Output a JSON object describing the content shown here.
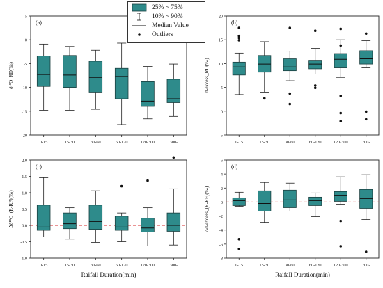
{
  "legend": {
    "box_label": "25% ~ 75%",
    "whisker_label": "10% ~ 90%",
    "median_label": "Median Value",
    "outlier_label": "Outliers"
  },
  "colors": {
    "box_fill": "#2e8b8b",
    "box_edge": "#1a3f3f",
    "zero_line": "#d62728"
  },
  "chart_data": [
    {
      "type": "box",
      "panel_label": "(a)",
      "ylabel": "δ¹⁸O_RD(‰)",
      "xlabel": "",
      "ylim": [
        -20,
        5
      ],
      "yticks": [
        5,
        0,
        -5,
        -10,
        -15,
        -20
      ],
      "zero_line": false,
      "categories": [
        "0-15",
        "15-30",
        "30-60",
        "60-120",
        "120-300",
        "300-"
      ],
      "boxes": [
        {
          "whisker_low": -14.8,
          "q1": -9.8,
          "median": -7.3,
          "q3": -3.4,
          "whisker_high": -0.9,
          "outliers": []
        },
        {
          "whisker_low": -14.8,
          "q1": -10.0,
          "median": -7.4,
          "q3": -3.3,
          "whisker_high": -1.4,
          "outliers": []
        },
        {
          "whisker_low": -14.6,
          "q1": -11.0,
          "median": -7.9,
          "q3": -4.5,
          "whisker_high": -2.2,
          "outliers": []
        },
        {
          "whisker_low": -17.8,
          "q1": -12.4,
          "median": -7.7,
          "q3": -6.0,
          "whisker_high": -0.7,
          "outliers": []
        },
        {
          "whisker_low": -16.6,
          "q1": -14.0,
          "median": -12.9,
          "q3": -8.8,
          "whisker_high": -5.6,
          "outliers": []
        },
        {
          "whisker_low": -16.1,
          "q1": -13.2,
          "median": -12.4,
          "q3": -8.3,
          "whisker_high": -5.1,
          "outliers": []
        }
      ]
    },
    {
      "type": "box",
      "panel_label": "(b)",
      "ylabel": "d-excess_RD(‰)",
      "xlabel": "",
      "ylim": [
        -5,
        20
      ],
      "yticks": [
        20,
        15,
        10,
        5,
        0,
        -5
      ],
      "zero_line": false,
      "categories": [
        "0-15",
        "15-30",
        "30-60",
        "60-120",
        "120-300",
        "300-"
      ],
      "boxes": [
        {
          "whisker_low": 3.5,
          "q1": 7.6,
          "median": 9.3,
          "q3": 10.3,
          "whisker_high": 12.2,
          "outliers": [
            17.5,
            15.8,
            15.4,
            14.9
          ]
        },
        {
          "whisker_low": 4.0,
          "q1": 8.2,
          "median": 9.9,
          "q3": 11.7,
          "whisker_high": 14.6,
          "outliers": [
            2.7
          ]
        },
        {
          "whisker_low": 6.4,
          "q1": 8.5,
          "median": 9.3,
          "q3": 11.0,
          "whisker_high": 12.6,
          "outliers": [
            17.5,
            3.7,
            1.5
          ]
        },
        {
          "whisker_low": 7.8,
          "q1": 8.9,
          "median": 9.9,
          "q3": 10.7,
          "whisker_high": 13.2,
          "outliers": [
            16.9,
            5.4,
            4.9
          ]
        },
        {
          "whisker_low": 7.1,
          "q1": 9.1,
          "median": 10.9,
          "q3": 12.1,
          "whisker_high": 15.0,
          "outliers": [
            17.3,
            13.8,
            3.2,
            -0.4,
            -2.1
          ]
        },
        {
          "whisker_low": 9.1,
          "q1": 9.9,
          "median": 11.0,
          "q3": 12.7,
          "whisker_high": 14.8,
          "outliers": [
            16.3,
            -0.1,
            -1.7
          ]
        }
      ]
    },
    {
      "type": "box",
      "panel_label": "(c)",
      "ylabel": "Δδ¹⁸O_(R-RF)(‰)",
      "xlabel": "Raifall Duration(min)",
      "ylim": [
        -1.0,
        2.0
      ],
      "yticks": [
        2.0,
        1.5,
        1.0,
        0.5,
        0.0,
        -0.5,
        -1.0
      ],
      "zero_line": true,
      "categories": [
        "0-15",
        "15-30",
        "30-60",
        "60-120",
        "120-300",
        "300-"
      ],
      "boxes": [
        {
          "whisker_low": -0.35,
          "q1": -0.15,
          "median": -0.05,
          "q3": 0.62,
          "whisker_high": 1.46,
          "outliers": []
        },
        {
          "whisker_low": -0.42,
          "q1": -0.1,
          "median": 0.05,
          "q3": 0.38,
          "whisker_high": 0.54,
          "outliers": []
        },
        {
          "whisker_low": -0.52,
          "q1": -0.12,
          "median": 0.12,
          "q3": 0.62,
          "whisker_high": 1.06,
          "outliers": []
        },
        {
          "whisker_low": -0.5,
          "q1": -0.15,
          "median": -0.05,
          "q3": 0.28,
          "whisker_high": 0.38,
          "outliers": [
            1.2
          ]
        },
        {
          "whisker_low": -0.63,
          "q1": -0.2,
          "median": -0.08,
          "q3": 0.22,
          "whisker_high": 0.54,
          "outliers": [
            1.37
          ]
        },
        {
          "whisker_low": -0.6,
          "q1": -0.18,
          "median": 0.0,
          "q3": 0.38,
          "whisker_high": 1.12,
          "outliers": [
            2.08
          ]
        }
      ]
    },
    {
      "type": "box",
      "panel_label": "(d)",
      "ylabel": "Δd-excess_(R-RF)(‰)",
      "xlabel": "Raifall Duration(min)",
      "ylim": [
        -8,
        6
      ],
      "yticks": [
        6,
        4,
        2,
        0,
        -2,
        -4,
        -6,
        -8
      ],
      "zero_line": true,
      "categories": [
        "0-15",
        "15-30",
        "30-60",
        "60-120",
        "120-300",
        "300-"
      ],
      "boxes": [
        {
          "whisker_low": -0.6,
          "q1": -0.5,
          "median": 0.2,
          "q3": 0.6,
          "whisker_high": 1.4,
          "outliers": [
            -5.3,
            -6.7
          ]
        },
        {
          "whisker_low": -2.9,
          "q1": -1.3,
          "median": -0.2,
          "q3": 1.6,
          "whisker_high": 2.8,
          "outliers": []
        },
        {
          "whisker_low": -1.3,
          "q1": -0.8,
          "median": 0.3,
          "q3": 1.7,
          "whisker_high": 2.7,
          "outliers": []
        },
        {
          "whisker_low": -2.1,
          "q1": -0.5,
          "median": 0.2,
          "q3": 0.7,
          "whisker_high": 1.3,
          "outliers": []
        },
        {
          "whisker_low": -0.3,
          "q1": 0.1,
          "median": 0.9,
          "q3": 1.5,
          "whisker_high": 3.6,
          "outliers": [
            -2.7,
            -6.3
          ]
        },
        {
          "whisker_low": -2.5,
          "q1": -0.9,
          "median": 0.5,
          "q3": 1.8,
          "whisker_high": 3.9,
          "outliers": [
            -7.1
          ]
        }
      ]
    }
  ]
}
